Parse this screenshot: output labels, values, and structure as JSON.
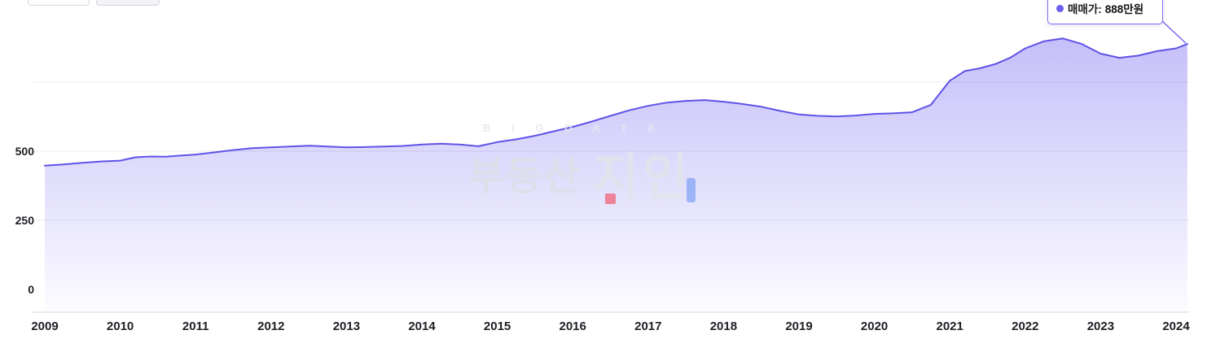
{
  "tooltip": {
    "series_label": "매매가:",
    "value": "888만원",
    "accent_color": "#6d5df2",
    "border_color": "#7a6cf0"
  },
  "watermark": {
    "top_text": "B I G D A T A",
    "brand_text": "부동산",
    "logo_text": "지인"
  },
  "chart_data": {
    "type": "area",
    "title": "",
    "xlabel": "",
    "ylabel": "",
    "grid": true,
    "xlim": [
      2009,
      2024.15
    ],
    "ylim": [
      0,
      1000
    ],
    "x_tick_labels": [
      "2009",
      "2010",
      "2011",
      "2012",
      "2013",
      "2014",
      "2015",
      "2016",
      "2017",
      "2018",
      "2019",
      "2020",
      "2021",
      "2022",
      "2023",
      "2024"
    ],
    "y_ticks": [
      {
        "v": 0,
        "label": "0"
      },
      {
        "v": 250,
        "label": "250"
      },
      {
        "v": 500,
        "label": "500"
      }
    ],
    "gridline_values": [
      250,
      500,
      750
    ],
    "series": [
      {
        "name": "매매가",
        "unit": "만원",
        "line_color": "#5f53e8",
        "fill_top": "rgba(109,96,240,0.40)",
        "fill_bottom": "rgba(109,96,240,0.02)",
        "points": [
          [
            2009.0,
            448
          ],
          [
            2009.25,
            452
          ],
          [
            2009.5,
            458
          ],
          [
            2009.75,
            463
          ],
          [
            2010.0,
            466
          ],
          [
            2010.2,
            478
          ],
          [
            2010.4,
            481
          ],
          [
            2010.6,
            480
          ],
          [
            2010.8,
            484
          ],
          [
            2011.0,
            488
          ],
          [
            2011.25,
            496
          ],
          [
            2011.5,
            504
          ],
          [
            2011.75,
            511
          ],
          [
            2012.0,
            514
          ],
          [
            2012.25,
            517
          ],
          [
            2012.5,
            520
          ],
          [
            2012.75,
            517
          ],
          [
            2013.0,
            514
          ],
          [
            2013.25,
            515
          ],
          [
            2013.5,
            517
          ],
          [
            2013.75,
            519
          ],
          [
            2014.0,
            524
          ],
          [
            2014.25,
            527
          ],
          [
            2014.5,
            524
          ],
          [
            2014.75,
            518
          ],
          [
            2015.0,
            533
          ],
          [
            2015.25,
            543
          ],
          [
            2015.5,
            556
          ],
          [
            2015.75,
            572
          ],
          [
            2016.0,
            588
          ],
          [
            2016.25,
            607
          ],
          [
            2016.5,
            628
          ],
          [
            2016.75,
            648
          ],
          [
            2017.0,
            664
          ],
          [
            2017.25,
            676
          ],
          [
            2017.5,
            682
          ],
          [
            2017.75,
            685
          ],
          [
            2018.0,
            679
          ],
          [
            2018.25,
            671
          ],
          [
            2018.5,
            661
          ],
          [
            2018.75,
            646
          ],
          [
            2019.0,
            633
          ],
          [
            2019.25,
            628
          ],
          [
            2019.5,
            626
          ],
          [
            2019.75,
            629
          ],
          [
            2020.0,
            635
          ],
          [
            2020.25,
            637
          ],
          [
            2020.5,
            641
          ],
          [
            2020.75,
            668
          ],
          [
            2021.0,
            755
          ],
          [
            2021.2,
            790
          ],
          [
            2021.4,
            800
          ],
          [
            2021.6,
            815
          ],
          [
            2021.8,
            838
          ],
          [
            2022.0,
            872
          ],
          [
            2022.25,
            898
          ],
          [
            2022.5,
            908
          ],
          [
            2022.75,
            888
          ],
          [
            2023.0,
            853
          ],
          [
            2023.25,
            838
          ],
          [
            2023.5,
            846
          ],
          [
            2023.75,
            862
          ],
          [
            2024.0,
            872
          ],
          [
            2024.15,
            888
          ]
        ]
      }
    ],
    "last_point": {
      "x": 2024.15,
      "y": 888
    }
  }
}
